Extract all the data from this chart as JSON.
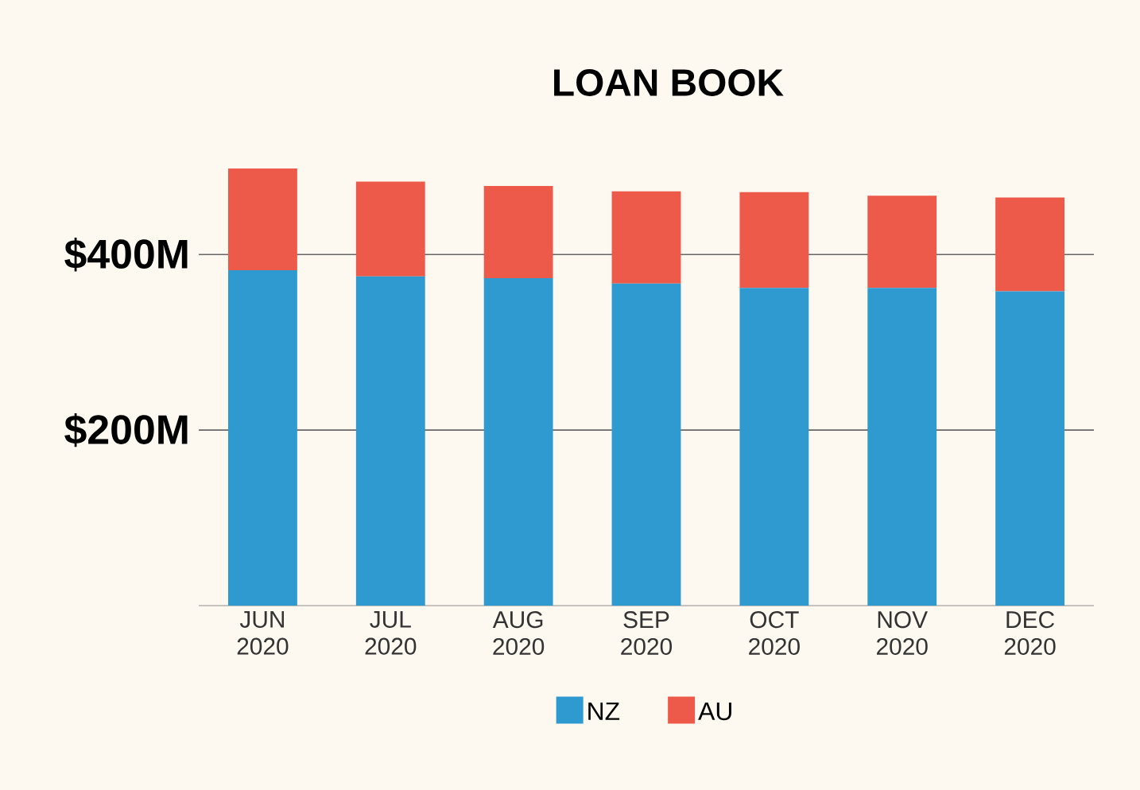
{
  "chart_data": {
    "type": "bar",
    "title": "LOAN BOOK",
    "stacked": true,
    "categories": [
      "JUN 2020",
      "JUL 2020",
      "AUG 2020",
      "SEP 2020",
      "OCT 2020",
      "NOV 2020",
      "DEC 2020"
    ],
    "series": [
      {
        "name": "NZ",
        "color": "#2e9ad0",
        "values": [
          382,
          375,
          373,
          367,
          362,
          362,
          358
        ]
      },
      {
        "name": "AU",
        "color": "#ee5a4a",
        "values": [
          116,
          108,
          105,
          105,
          109,
          105,
          107
        ]
      }
    ],
    "ylim": [
      0,
      498
    ],
    "yticks": [
      {
        "value": 200,
        "label": "$200M"
      },
      {
        "value": 400,
        "label": "$400M"
      }
    ],
    "grid": "y",
    "legend": "bottom"
  }
}
